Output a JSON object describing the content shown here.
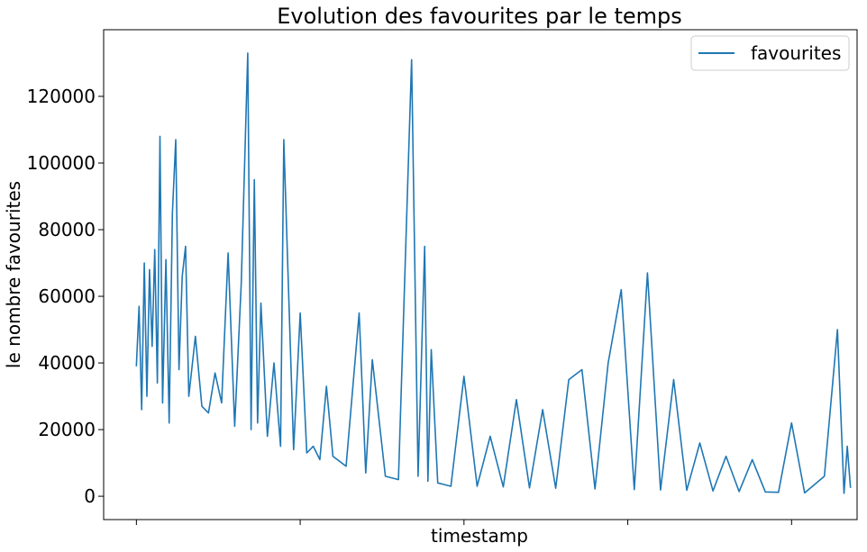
{
  "chart_data": {
    "type": "line",
    "title": "Evolution des favourites par le temps",
    "xlabel": "timestamp",
    "ylabel": "le nombre favourites",
    "ylim": [
      -7000,
      140000
    ],
    "xlim": [
      -0.05,
      1.1
    ],
    "yticks": [
      0,
      20000,
      40000,
      60000,
      80000,
      100000,
      120000
    ],
    "xticks": [
      0,
      0.25,
      0.5,
      0.75,
      1.0
    ],
    "grid": false,
    "legend": "top-right",
    "series": [
      {
        "name": "favourites",
        "color": "#1f77b4",
        "x": [
          0.0,
          0.004,
          0.008,
          0.012,
          0.016,
          0.02,
          0.024,
          0.028,
          0.032,
          0.036,
          0.04,
          0.045,
          0.05,
          0.055,
          0.06,
          0.065,
          0.07,
          0.075,
          0.08,
          0.09,
          0.1,
          0.11,
          0.12,
          0.13,
          0.14,
          0.15,
          0.16,
          0.17,
          0.175,
          0.18,
          0.185,
          0.19,
          0.2,
          0.21,
          0.22,
          0.225,
          0.23,
          0.24,
          0.25,
          0.26,
          0.27,
          0.28,
          0.29,
          0.3,
          0.32,
          0.34,
          0.35,
          0.36,
          0.38,
          0.4,
          0.42,
          0.43,
          0.44,
          0.445,
          0.45,
          0.46,
          0.47,
          0.48,
          0.5,
          0.52,
          0.54,
          0.56,
          0.58,
          0.6,
          0.62,
          0.64,
          0.66,
          0.68,
          0.7,
          0.72,
          0.74,
          0.76,
          0.78,
          0.8,
          0.82,
          0.84,
          0.86,
          0.88,
          0.9,
          0.92,
          0.94,
          0.96,
          0.98,
          1.0,
          1.02,
          1.05,
          1.07,
          1.08,
          1.085,
          1.09
        ],
        "values": [
          39000,
          57000,
          26000,
          70000,
          30000,
          68000,
          45000,
          74000,
          34000,
          108000,
          28000,
          71000,
          22000,
          85000,
          107000,
          38000,
          66000,
          75000,
          30000,
          48000,
          27000,
          25000,
          37000,
          28000,
          73000,
          21000,
          64000,
          133000,
          20000,
          95000,
          22000,
          58000,
          18000,
          40000,
          15000,
          107000,
          76000,
          14000,
          55000,
          13000,
          15000,
          11000,
          33000,
          12000,
          9000,
          55000,
          7000,
          41000,
          6000,
          5000,
          131000,
          6000,
          75000,
          4500,
          44000,
          4000,
          3500,
          3000,
          36000,
          3000,
          18000,
          2800,
          29000,
          2500,
          26000,
          2400,
          35000,
          38000,
          2200,
          40000,
          62000,
          2000,
          67000,
          1900,
          35000,
          1800,
          16000,
          1600,
          12000,
          1400,
          11000,
          1300,
          1200,
          22000,
          1000,
          6000,
          50000,
          900,
          15000,
          2500
        ]
      }
    ]
  }
}
